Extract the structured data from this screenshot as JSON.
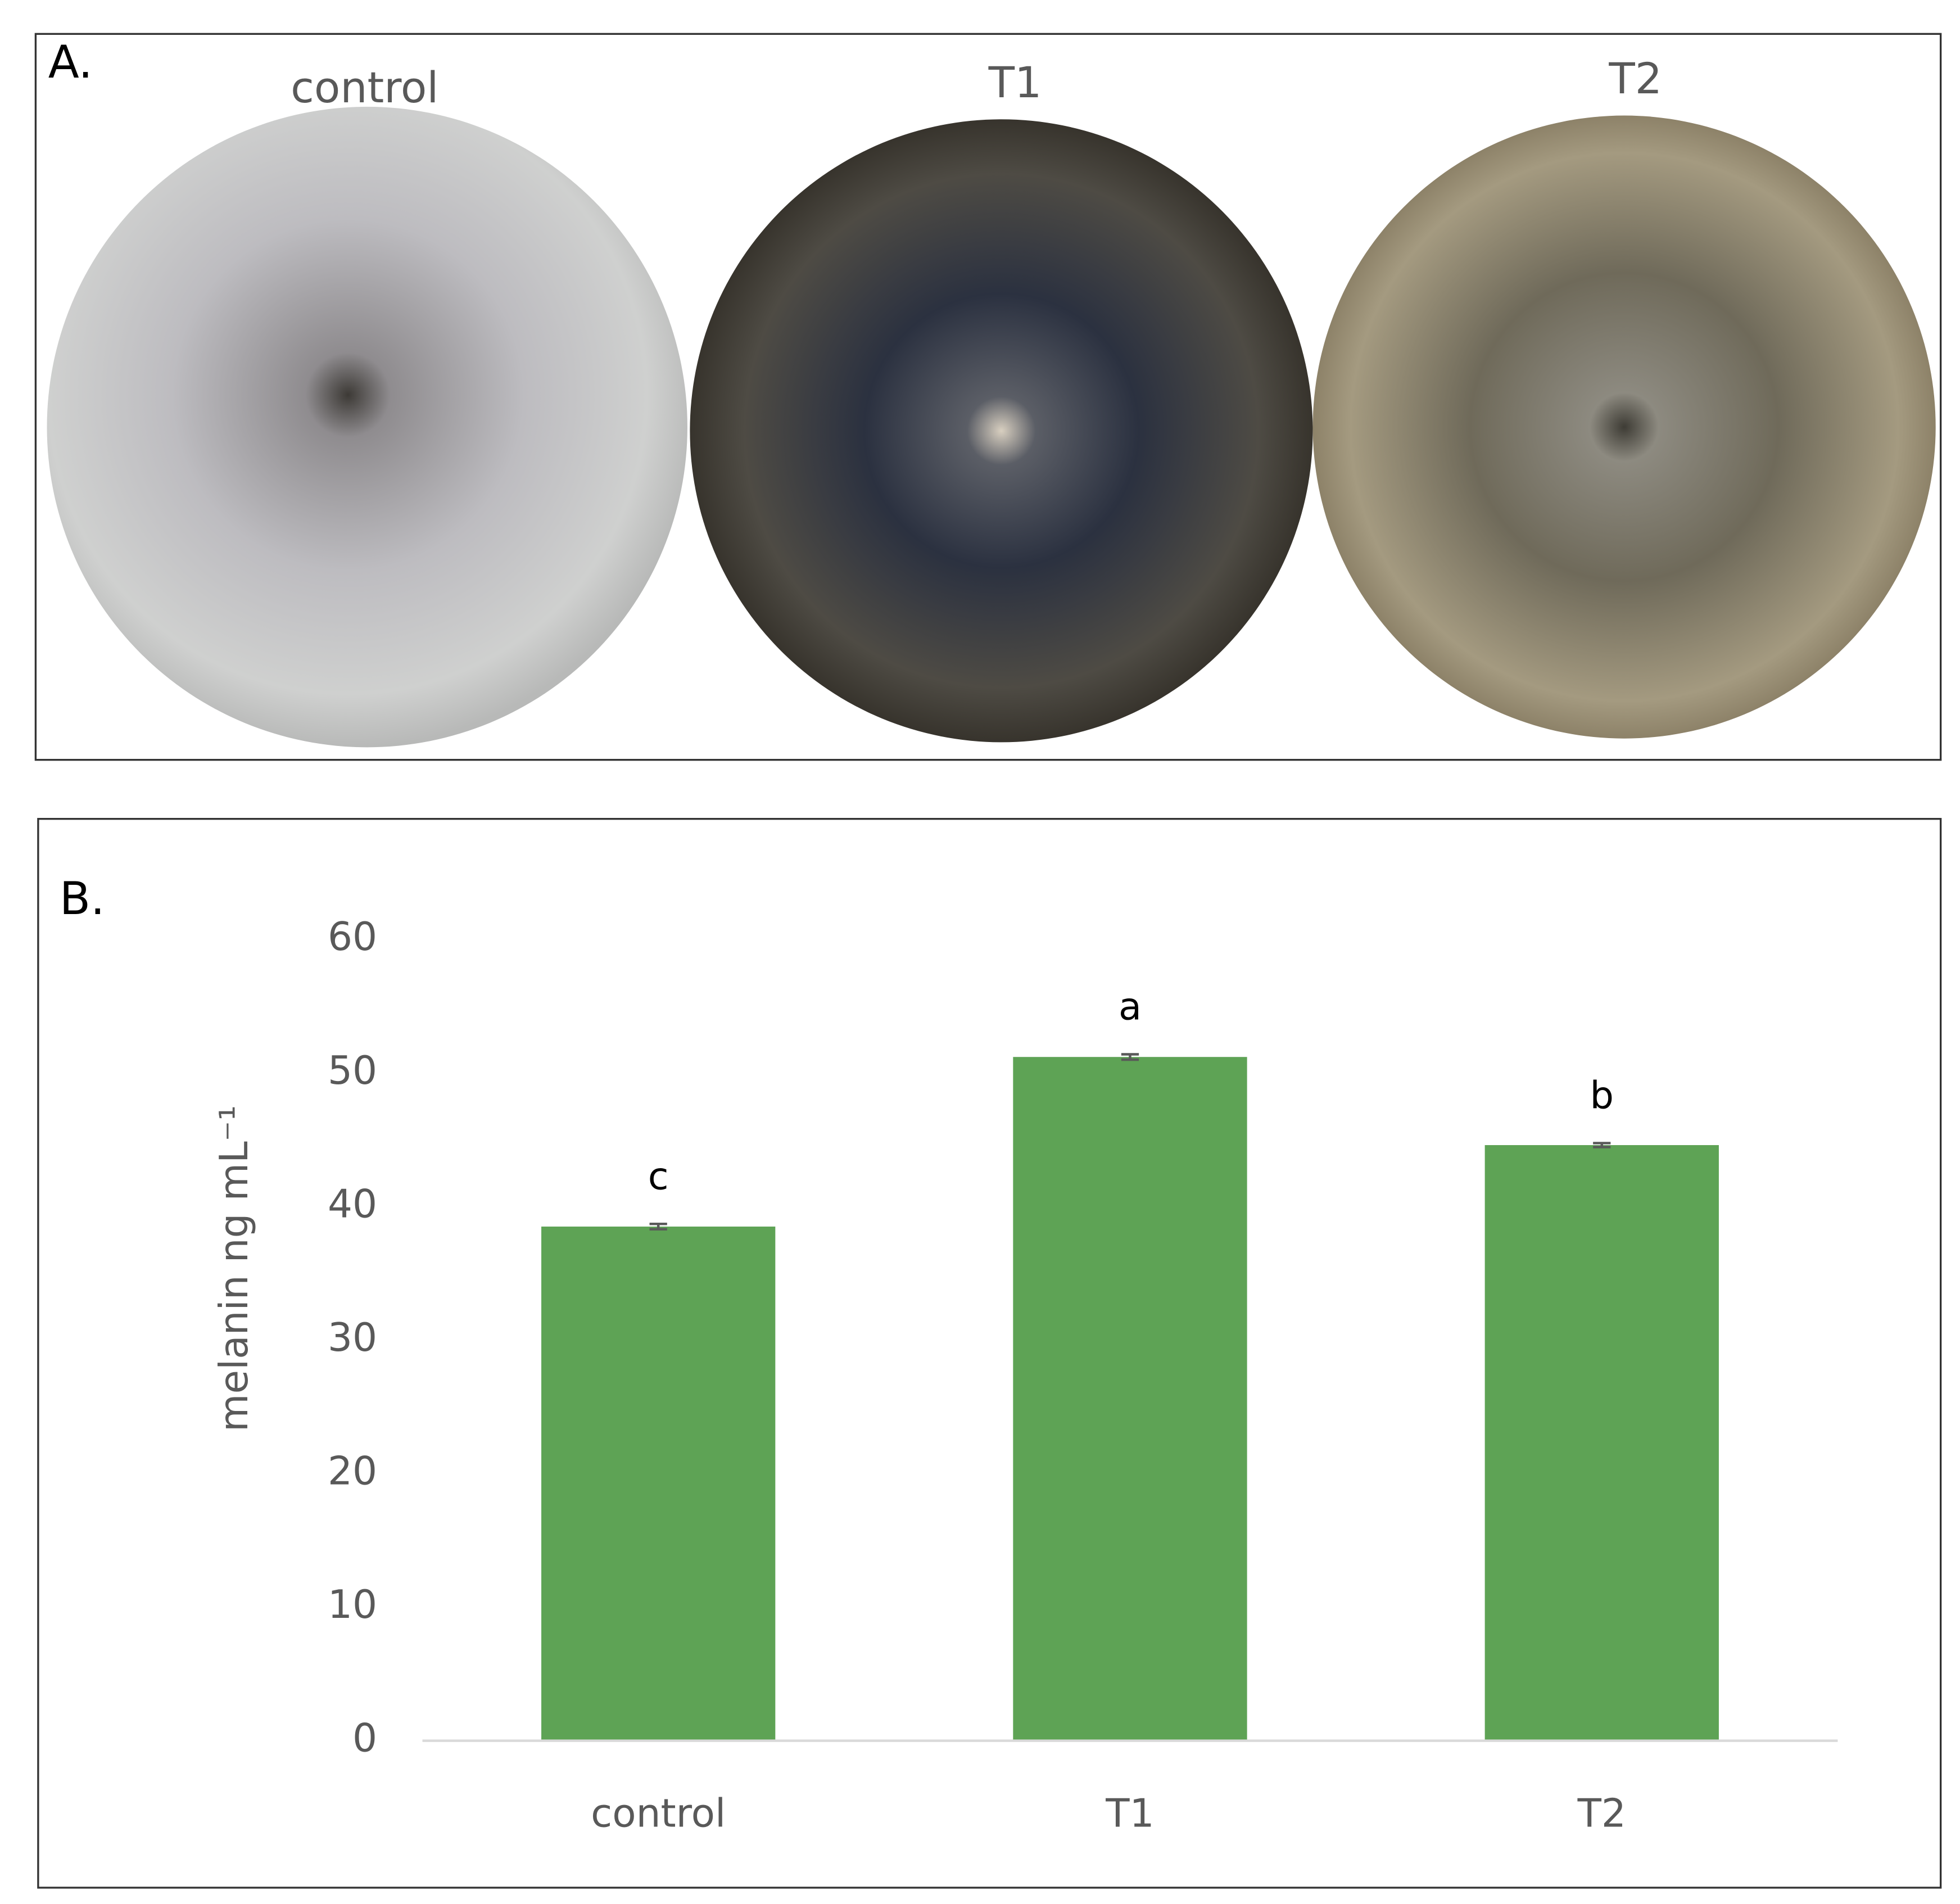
{
  "panel_a": {
    "label": "A.",
    "plates": [
      "control",
      "T1",
      "T2"
    ]
  },
  "chart_data": {
    "type": "bar",
    "panel_label": "B.",
    "ylabel": "melanin ng mL⁻¹",
    "categories": [
      "control",
      "T1",
      "T2"
    ],
    "values": [
      38.5,
      51.2,
      44.6
    ],
    "errors": [
      0.2,
      0.2,
      0.15
    ],
    "significance_letters": [
      "c",
      "a",
      "b"
    ],
    "color": "#5ea355",
    "ylim": [
      0,
      60
    ],
    "yticks": [
      0,
      10,
      20,
      30,
      40,
      50,
      60
    ],
    "grid": false
  }
}
